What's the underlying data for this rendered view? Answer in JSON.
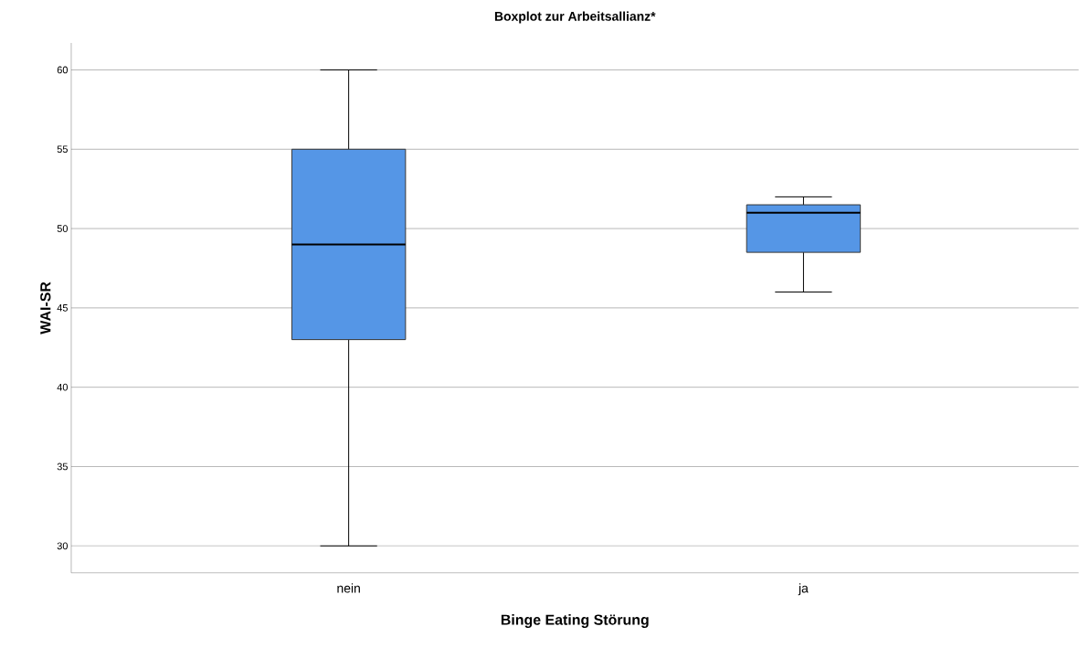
{
  "chart_data": {
    "type": "box",
    "title": "Boxplot zur Arbeitsallianz*",
    "xlabel": "Binge Eating Störung",
    "ylabel": "WAI-SR",
    "categories": [
      "nein",
      "ja"
    ],
    "boxes": [
      {
        "low": 30,
        "q1": 43,
        "median": 49,
        "q3": 55,
        "high": 60
      },
      {
        "low": 46,
        "q1": 48.5,
        "median": 51,
        "q3": 51.5,
        "high": 52
      }
    ],
    "color": "#5596e6",
    "ylim": [
      28.3,
      61.7
    ],
    "yticks": [
      30,
      35,
      40,
      45,
      50,
      55,
      60
    ],
    "grid": "y"
  }
}
